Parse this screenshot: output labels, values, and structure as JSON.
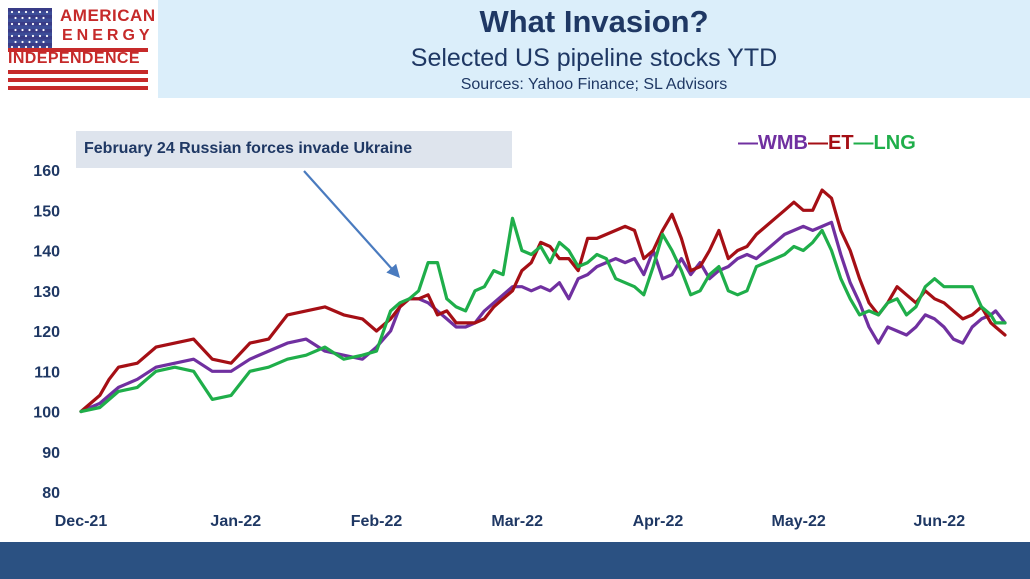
{
  "logo": {
    "line1": "AMERICAN",
    "line2": "ENERGY",
    "line3": "INDEPENDENCE"
  },
  "header": {
    "title": "What Invasion?",
    "subtitle": "Selected US pipeline stocks YTD",
    "sources": "Sources: Yahoo Finance; SL Advisors"
  },
  "annotation": {
    "text": "February 24 Russian forces invade Ukraine",
    "x": 67
  },
  "colors": {
    "WMB": "#7030a0",
    "ET": "#a50f15",
    "LNG": "#1fae4a",
    "axis": "#1f3864",
    "header_bg": "#dbeefa",
    "footer_bg": "#2b5182"
  },
  "chart_data": {
    "type": "line",
    "xlabel": "",
    "ylabel": "",
    "ylim": [
      80,
      160
    ],
    "yticks": [
      80,
      90,
      100,
      110,
      120,
      130,
      140,
      150,
      160
    ],
    "xlim": [
      0,
      197
    ],
    "xticks": [
      {
        "label": "Dec-21",
        "x": 0
      },
      {
        "label": "Jan-22",
        "x": 33
      },
      {
        "label": "Feb-22",
        "x": 63
      },
      {
        "label": "Mar-22",
        "x": 93
      },
      {
        "label": "Apr-22",
        "x": 123
      },
      {
        "label": "May-22",
        "x": 153
      },
      {
        "label": "Jun-22",
        "x": 183
      }
    ],
    "grid": false,
    "legend_position": "top-right",
    "series": [
      {
        "name": "WMB",
        "color": "#7030a0",
        "points": [
          [
            0,
            100
          ],
          [
            4,
            102
          ],
          [
            8,
            106
          ],
          [
            12,
            108
          ],
          [
            16,
            111
          ],
          [
            20,
            112
          ],
          [
            24,
            113
          ],
          [
            28,
            110
          ],
          [
            32,
            110
          ],
          [
            36,
            113
          ],
          [
            40,
            115
          ],
          [
            44,
            117
          ],
          [
            48,
            118
          ],
          [
            52,
            115
          ],
          [
            56,
            114
          ],
          [
            60,
            113
          ],
          [
            63,
            116
          ],
          [
            66,
            120
          ],
          [
            68,
            126
          ],
          [
            70,
            128
          ],
          [
            72,
            128
          ],
          [
            74,
            127
          ],
          [
            76,
            125
          ],
          [
            78,
            123
          ],
          [
            80,
            121
          ],
          [
            82,
            121
          ],
          [
            84,
            122
          ],
          [
            86,
            125
          ],
          [
            88,
            127
          ],
          [
            90,
            129
          ],
          [
            92,
            131
          ],
          [
            94,
            131
          ],
          [
            96,
            130
          ],
          [
            98,
            131
          ],
          [
            100,
            130
          ],
          [
            102,
            132
          ],
          [
            104,
            128
          ],
          [
            106,
            133
          ],
          [
            108,
            134
          ],
          [
            110,
            136
          ],
          [
            112,
            137
          ],
          [
            114,
            138
          ],
          [
            116,
            137
          ],
          [
            118,
            138
          ],
          [
            120,
            134
          ],
          [
            122,
            140
          ],
          [
            124,
            133
          ],
          [
            126,
            134
          ],
          [
            128,
            138
          ],
          [
            130,
            134
          ],
          [
            132,
            137
          ],
          [
            134,
            133
          ],
          [
            136,
            135
          ],
          [
            138,
            136
          ],
          [
            140,
            138
          ],
          [
            142,
            139
          ],
          [
            144,
            138
          ],
          [
            146,
            140
          ],
          [
            148,
            142
          ],
          [
            150,
            144
          ],
          [
            152,
            145
          ],
          [
            154,
            146
          ],
          [
            156,
            145
          ],
          [
            158,
            146
          ],
          [
            160,
            147
          ],
          [
            162,
            139
          ],
          [
            164,
            132
          ],
          [
            166,
            127
          ],
          [
            168,
            121
          ],
          [
            170,
            117
          ],
          [
            172,
            121
          ],
          [
            174,
            120
          ],
          [
            176,
            119
          ],
          [
            178,
            121
          ],
          [
            180,
            124
          ],
          [
            182,
            123
          ],
          [
            184,
            121
          ],
          [
            186,
            118
          ],
          [
            188,
            117
          ],
          [
            190,
            121
          ],
          [
            192,
            123
          ],
          [
            194,
            124
          ],
          [
            195,
            125
          ],
          [
            197,
            122
          ]
        ]
      },
      {
        "name": "ET",
        "color": "#a50f15",
        "points": [
          [
            0,
            100
          ],
          [
            4,
            104
          ],
          [
            6,
            108
          ],
          [
            8,
            111
          ],
          [
            12,
            112
          ],
          [
            16,
            116
          ],
          [
            20,
            117
          ],
          [
            24,
            118
          ],
          [
            28,
            113
          ],
          [
            32,
            112
          ],
          [
            36,
            117
          ],
          [
            40,
            118
          ],
          [
            44,
            124
          ],
          [
            48,
            125
          ],
          [
            52,
            126
          ],
          [
            56,
            124
          ],
          [
            60,
            123
          ],
          [
            63,
            120
          ],
          [
            66,
            123
          ],
          [
            68,
            126
          ],
          [
            70,
            128
          ],
          [
            72,
            128
          ],
          [
            74,
            129
          ],
          [
            76,
            124
          ],
          [
            78,
            125
          ],
          [
            80,
            122
          ],
          [
            82,
            122
          ],
          [
            84,
            122
          ],
          [
            86,
            123
          ],
          [
            88,
            126
          ],
          [
            90,
            128
          ],
          [
            92,
            130
          ],
          [
            94,
            135
          ],
          [
            96,
            137
          ],
          [
            98,
            142
          ],
          [
            100,
            141
          ],
          [
            102,
            138
          ],
          [
            104,
            138
          ],
          [
            106,
            135
          ],
          [
            108,
            143
          ],
          [
            110,
            143
          ],
          [
            112,
            144
          ],
          [
            114,
            145
          ],
          [
            116,
            146
          ],
          [
            118,
            145
          ],
          [
            120,
            138
          ],
          [
            122,
            140
          ],
          [
            124,
            145
          ],
          [
            126,
            149
          ],
          [
            128,
            143
          ],
          [
            130,
            135
          ],
          [
            132,
            136
          ],
          [
            134,
            140
          ],
          [
            136,
            145
          ],
          [
            138,
            138
          ],
          [
            140,
            140
          ],
          [
            142,
            141
          ],
          [
            144,
            144
          ],
          [
            146,
            146
          ],
          [
            148,
            148
          ],
          [
            150,
            150
          ],
          [
            152,
            152
          ],
          [
            154,
            150
          ],
          [
            156,
            150
          ],
          [
            158,
            155
          ],
          [
            160,
            153
          ],
          [
            162,
            145
          ],
          [
            164,
            140
          ],
          [
            166,
            133
          ],
          [
            168,
            127
          ],
          [
            170,
            124
          ],
          [
            172,
            127
          ],
          [
            174,
            131
          ],
          [
            176,
            129
          ],
          [
            178,
            127
          ],
          [
            180,
            130
          ],
          [
            182,
            128
          ],
          [
            184,
            127
          ],
          [
            186,
            125
          ],
          [
            188,
            123
          ],
          [
            190,
            124
          ],
          [
            192,
            126
          ],
          [
            194,
            122
          ],
          [
            195,
            121
          ],
          [
            197,
            119
          ]
        ]
      },
      {
        "name": "LNG",
        "color": "#1fae4a",
        "points": [
          [
            0,
            100
          ],
          [
            4,
            101
          ],
          [
            8,
            105
          ],
          [
            12,
            106
          ],
          [
            16,
            110
          ],
          [
            20,
            111
          ],
          [
            24,
            110
          ],
          [
            28,
            103
          ],
          [
            32,
            104
          ],
          [
            36,
            110
          ],
          [
            40,
            111
          ],
          [
            44,
            113
          ],
          [
            48,
            114
          ],
          [
            52,
            116
          ],
          [
            56,
            113
          ],
          [
            60,
            114
          ],
          [
            63,
            115
          ],
          [
            66,
            125
          ],
          [
            68,
            127
          ],
          [
            70,
            128
          ],
          [
            72,
            130
          ],
          [
            74,
            137
          ],
          [
            76,
            137
          ],
          [
            78,
            128
          ],
          [
            80,
            126
          ],
          [
            82,
            125
          ],
          [
            84,
            130
          ],
          [
            86,
            131
          ],
          [
            88,
            135
          ],
          [
            90,
            134
          ],
          [
            92,
            148
          ],
          [
            94,
            140
          ],
          [
            96,
            139
          ],
          [
            98,
            141
          ],
          [
            100,
            137
          ],
          [
            102,
            142
          ],
          [
            104,
            140
          ],
          [
            106,
            136
          ],
          [
            108,
            137
          ],
          [
            110,
            139
          ],
          [
            112,
            138
          ],
          [
            114,
            133
          ],
          [
            116,
            132
          ],
          [
            118,
            131
          ],
          [
            120,
            129
          ],
          [
            122,
            136
          ],
          [
            124,
            144
          ],
          [
            126,
            140
          ],
          [
            128,
            135
          ],
          [
            130,
            129
          ],
          [
            132,
            130
          ],
          [
            134,
            134
          ],
          [
            136,
            136
          ],
          [
            138,
            130
          ],
          [
            140,
            129
          ],
          [
            142,
            130
          ],
          [
            144,
            136
          ],
          [
            146,
            137
          ],
          [
            148,
            138
          ],
          [
            150,
            139
          ],
          [
            152,
            141
          ],
          [
            154,
            140
          ],
          [
            156,
            142
          ],
          [
            158,
            145
          ],
          [
            160,
            140
          ],
          [
            162,
            133
          ],
          [
            164,
            128
          ],
          [
            166,
            124
          ],
          [
            168,
            125
          ],
          [
            170,
            124
          ],
          [
            172,
            127
          ],
          [
            174,
            128
          ],
          [
            176,
            124
          ],
          [
            178,
            126
          ],
          [
            180,
            131
          ],
          [
            182,
            133
          ],
          [
            184,
            131
          ],
          [
            186,
            131
          ],
          [
            188,
            131
          ],
          [
            190,
            131
          ],
          [
            192,
            126
          ],
          [
            194,
            124
          ],
          [
            195,
            122
          ],
          [
            197,
            122
          ]
        ]
      }
    ]
  }
}
